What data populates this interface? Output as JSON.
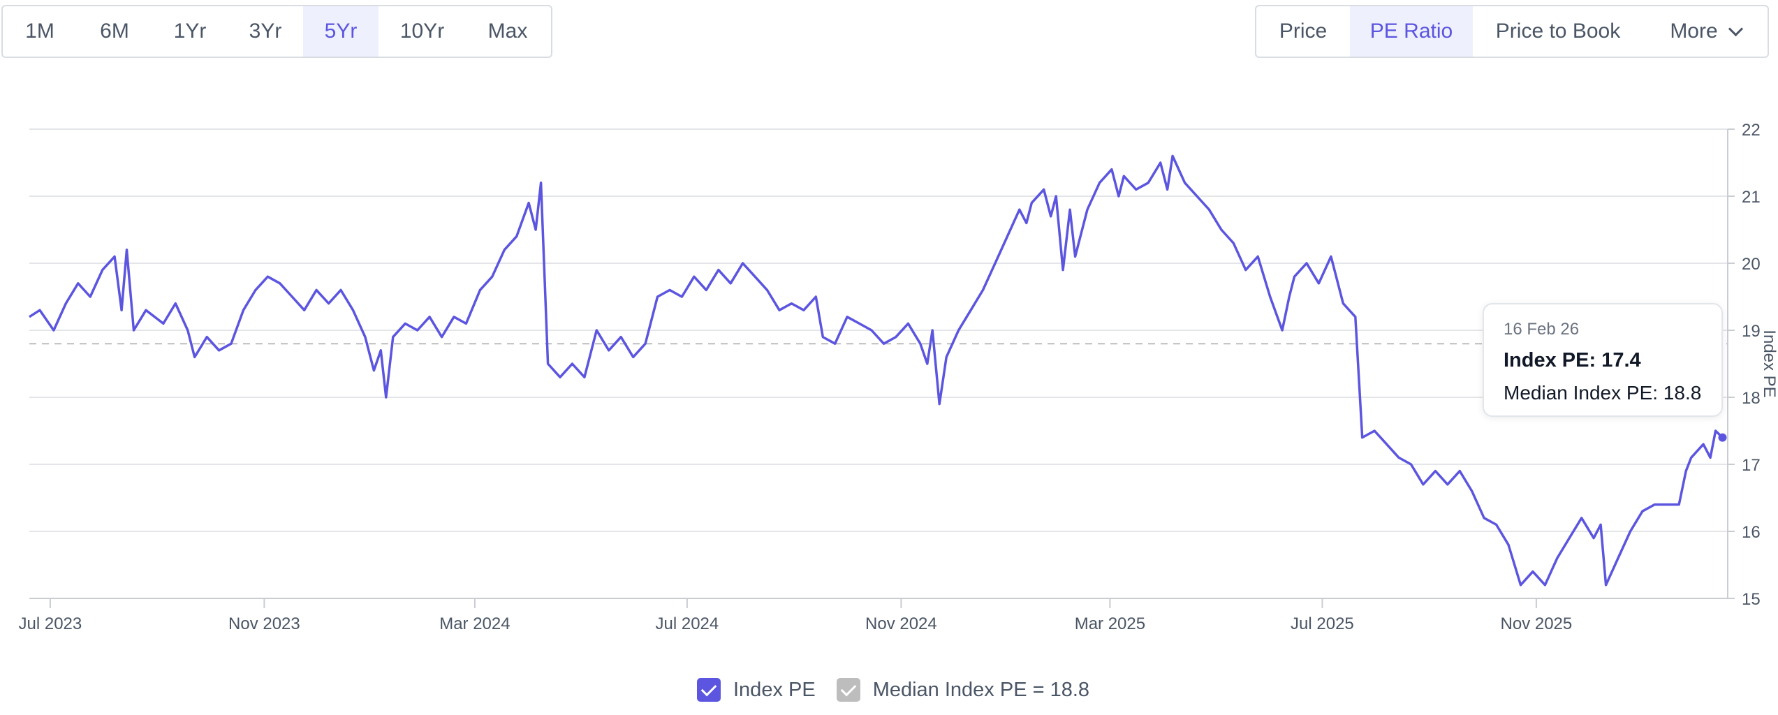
{
  "range_buttons": [
    {
      "label": "1M"
    },
    {
      "label": "6M"
    },
    {
      "label": "1Yr"
    },
    {
      "label": "3Yr"
    },
    {
      "label": "5Yr",
      "active": true
    },
    {
      "label": "10Yr"
    },
    {
      "label": "Max"
    }
  ],
  "metric_buttons": [
    {
      "label": "Price"
    },
    {
      "label": "PE Ratio",
      "active": true
    },
    {
      "label": "Price to Book"
    },
    {
      "label": "More",
      "icon": "chevron-down-icon"
    }
  ],
  "tooltip": {
    "date": "16 Feb 26",
    "index_pe": "Index PE: 17.4",
    "median": "Median Index PE: 18.8"
  },
  "legend": [
    {
      "label": "Index PE",
      "color": "#5b55e0",
      "checked": true
    },
    {
      "label": "Median Index PE = 18.8",
      "color": "#bdbdbd",
      "checked": true
    }
  ],
  "chart_data": {
    "type": "line",
    "ylabel": "Index PE",
    "ylim": [
      15,
      22
    ],
    "y_ticks": [
      "15",
      "16",
      "17",
      "18",
      "19",
      "20",
      "21",
      "22"
    ],
    "x_ticks": [
      "Jul 2023",
      "Nov 2023",
      "Mar 2024",
      "Jul 2024",
      "Nov 2024",
      "Mar 2025",
      "Jul 2025",
      "Nov 2025"
    ],
    "x_tick_dates": [
      "2023-07-01",
      "2023-11-01",
      "2024-03-01",
      "2024-07-01",
      "2024-11-01",
      "2025-03-01",
      "2025-07-01",
      "2025-11-01"
    ],
    "xlim": [
      "2023-06-19",
      "2026-02-19"
    ],
    "median": 18.8,
    "grid": true,
    "series": [
      {
        "name": "Index PE",
        "color": "#5b55e0",
        "points": [
          [
            "2023-06-19",
            19.2
          ],
          [
            "2023-06-25",
            19.3
          ],
          [
            "2023-07-03",
            19.0
          ],
          [
            "2023-07-10",
            19.4
          ],
          [
            "2023-07-17",
            19.7
          ],
          [
            "2023-07-24",
            19.5
          ],
          [
            "2023-07-31",
            19.9
          ],
          [
            "2023-08-07",
            20.1
          ],
          [
            "2023-08-11",
            19.3
          ],
          [
            "2023-08-14",
            20.2
          ],
          [
            "2023-08-18",
            19.0
          ],
          [
            "2023-08-25",
            19.3
          ],
          [
            "2023-09-04",
            19.1
          ],
          [
            "2023-09-11",
            19.4
          ],
          [
            "2023-09-18",
            19.0
          ],
          [
            "2023-09-22",
            18.6
          ],
          [
            "2023-09-29",
            18.9
          ],
          [
            "2023-10-06",
            18.7
          ],
          [
            "2023-10-13",
            18.8
          ],
          [
            "2023-10-20",
            19.3
          ],
          [
            "2023-10-27",
            19.6
          ],
          [
            "2023-11-03",
            19.8
          ],
          [
            "2023-11-10",
            19.7
          ],
          [
            "2023-11-17",
            19.5
          ],
          [
            "2023-11-24",
            19.3
          ],
          [
            "2023-12-01",
            19.6
          ],
          [
            "2023-12-08",
            19.4
          ],
          [
            "2023-12-15",
            19.6
          ],
          [
            "2023-12-22",
            19.3
          ],
          [
            "2023-12-29",
            18.9
          ],
          [
            "2024-01-03",
            18.4
          ],
          [
            "2024-01-07",
            18.7
          ],
          [
            "2024-01-10",
            18.0
          ],
          [
            "2024-01-14",
            18.9
          ],
          [
            "2024-01-21",
            19.1
          ],
          [
            "2024-01-28",
            19.0
          ],
          [
            "2024-02-04",
            19.2
          ],
          [
            "2024-02-11",
            18.9
          ],
          [
            "2024-02-18",
            19.2
          ],
          [
            "2024-02-25",
            19.1
          ],
          [
            "2024-03-04",
            19.6
          ],
          [
            "2024-03-11",
            19.8
          ],
          [
            "2024-03-18",
            20.2
          ],
          [
            "2024-03-25",
            20.4
          ],
          [
            "2024-04-01",
            20.9
          ],
          [
            "2024-04-05",
            20.5
          ],
          [
            "2024-04-08",
            21.2
          ],
          [
            "2024-04-12",
            18.5
          ],
          [
            "2024-04-19",
            18.3
          ],
          [
            "2024-04-26",
            18.5
          ],
          [
            "2024-05-03",
            18.3
          ],
          [
            "2024-05-10",
            19.0
          ],
          [
            "2024-05-17",
            18.7
          ],
          [
            "2024-05-24",
            18.9
          ],
          [
            "2024-05-31",
            18.6
          ],
          [
            "2024-06-07",
            18.8
          ],
          [
            "2024-06-14",
            19.5
          ],
          [
            "2024-06-21",
            19.6
          ],
          [
            "2024-06-28",
            19.5
          ],
          [
            "2024-07-05",
            19.8
          ],
          [
            "2024-07-12",
            19.6
          ],
          [
            "2024-07-19",
            19.9
          ],
          [
            "2024-07-26",
            19.7
          ],
          [
            "2024-08-02",
            20.0
          ],
          [
            "2024-08-09",
            19.8
          ],
          [
            "2024-08-16",
            19.6
          ],
          [
            "2024-08-23",
            19.3
          ],
          [
            "2024-08-30",
            19.4
          ],
          [
            "2024-09-06",
            19.3
          ],
          [
            "2024-09-13",
            19.5
          ],
          [
            "2024-09-17",
            18.9
          ],
          [
            "2024-09-24",
            18.8
          ],
          [
            "2024-10-01",
            19.2
          ],
          [
            "2024-10-08",
            19.1
          ],
          [
            "2024-10-15",
            19.0
          ],
          [
            "2024-10-22",
            18.8
          ],
          [
            "2024-10-29",
            18.9
          ],
          [
            "2024-11-05",
            19.1
          ],
          [
            "2024-11-12",
            18.8
          ],
          [
            "2024-11-16",
            18.5
          ],
          [
            "2024-11-19",
            19.0
          ],
          [
            "2024-11-23",
            17.9
          ],
          [
            "2024-11-27",
            18.6
          ],
          [
            "2024-12-04",
            19.0
          ],
          [
            "2024-12-11",
            19.3
          ],
          [
            "2024-12-18",
            19.6
          ],
          [
            "2024-12-25",
            20.0
          ],
          [
            "2025-01-01",
            20.4
          ],
          [
            "2025-01-08",
            20.8
          ],
          [
            "2025-01-12",
            20.6
          ],
          [
            "2025-01-15",
            20.9
          ],
          [
            "2025-01-22",
            21.1
          ],
          [
            "2025-01-26",
            20.7
          ],
          [
            "2025-01-29",
            21.0
          ],
          [
            "2025-02-02",
            19.9
          ],
          [
            "2025-02-06",
            20.8
          ],
          [
            "2025-02-09",
            20.1
          ],
          [
            "2025-02-16",
            20.8
          ],
          [
            "2025-02-23",
            21.2
          ],
          [
            "2025-03-02",
            21.4
          ],
          [
            "2025-03-06",
            21.0
          ],
          [
            "2025-03-09",
            21.3
          ],
          [
            "2025-03-16",
            21.1
          ],
          [
            "2025-03-23",
            21.2
          ],
          [
            "2025-03-30",
            21.5
          ],
          [
            "2025-04-03",
            21.1
          ],
          [
            "2025-04-06",
            21.6
          ],
          [
            "2025-04-13",
            21.2
          ],
          [
            "2025-04-20",
            21.0
          ],
          [
            "2025-04-27",
            20.8
          ],
          [
            "2025-05-04",
            20.5
          ],
          [
            "2025-05-11",
            20.3
          ],
          [
            "2025-05-18",
            19.9
          ],
          [
            "2025-05-25",
            20.1
          ],
          [
            "2025-06-01",
            19.5
          ],
          [
            "2025-06-08",
            19.0
          ],
          [
            "2025-06-12",
            19.5
          ],
          [
            "2025-06-15",
            19.8
          ],
          [
            "2025-06-22",
            20.0
          ],
          [
            "2025-06-29",
            19.7
          ],
          [
            "2025-07-06",
            20.1
          ],
          [
            "2025-07-13",
            19.4
          ],
          [
            "2025-07-20",
            19.2
          ],
          [
            "2025-07-24",
            17.4
          ],
          [
            "2025-07-31",
            17.5
          ],
          [
            "2025-08-07",
            17.3
          ],
          [
            "2025-08-14",
            17.1
          ],
          [
            "2025-08-21",
            17.0
          ],
          [
            "2025-08-28",
            16.7
          ],
          [
            "2025-09-04",
            16.9
          ],
          [
            "2025-09-11",
            16.7
          ],
          [
            "2025-09-18",
            16.9
          ],
          [
            "2025-09-25",
            16.6
          ],
          [
            "2025-10-02",
            16.2
          ],
          [
            "2025-10-09",
            16.1
          ],
          [
            "2025-10-16",
            15.8
          ],
          [
            "2025-10-23",
            15.2
          ],
          [
            "2025-10-30",
            15.4
          ],
          [
            "2025-11-06",
            15.2
          ],
          [
            "2025-11-13",
            15.6
          ],
          [
            "2025-11-20",
            15.9
          ],
          [
            "2025-11-27",
            16.2
          ],
          [
            "2025-12-04",
            15.9
          ],
          [
            "2025-12-08",
            16.1
          ],
          [
            "2025-12-11",
            15.2
          ],
          [
            "2025-12-18",
            15.6
          ],
          [
            "2025-12-25",
            16.0
          ],
          [
            "2026-01-01",
            16.3
          ],
          [
            "2026-01-08",
            16.4
          ],
          [
            "2026-01-15",
            16.4
          ],
          [
            "2026-01-22",
            16.4
          ],
          [
            "2026-01-26",
            16.9
          ],
          [
            "2026-01-29",
            17.1
          ],
          [
            "2026-02-05",
            17.3
          ],
          [
            "2026-02-09",
            17.1
          ],
          [
            "2026-02-12",
            17.5
          ],
          [
            "2026-02-16",
            17.4
          ]
        ]
      }
    ]
  }
}
